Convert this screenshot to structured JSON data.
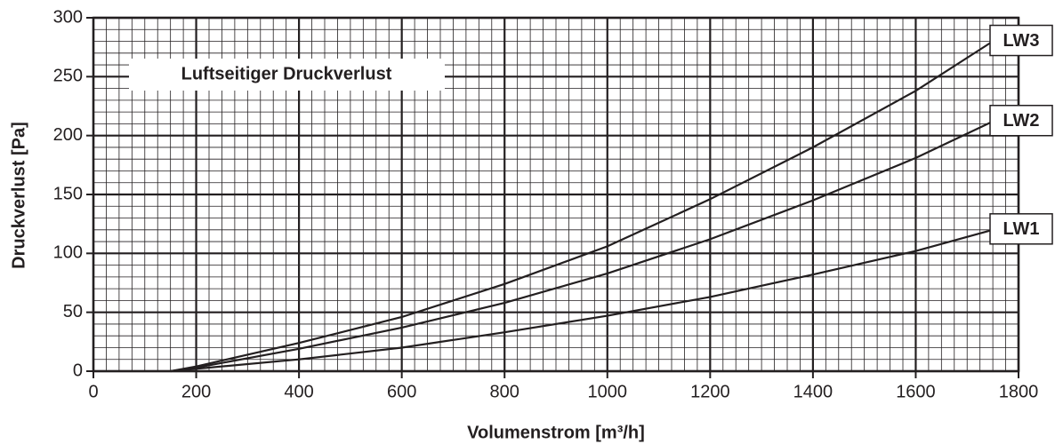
{
  "chart_data": {
    "type": "line",
    "annotation": "Luftseitiger Druckverlust",
    "x_label": "Volumenstrom [m³/h]",
    "y_label": "Druckverlust [Pa]",
    "x": [
      150,
      200,
      400,
      600,
      800,
      1000,
      1200,
      1400,
      1600,
      1750
    ],
    "series": [
      {
        "name": "LW1",
        "color": "#231f20",
        "values": [
          0,
          2,
          10,
          20,
          33,
          47,
          63,
          82,
          102,
          120
        ]
      },
      {
        "name": "LW2",
        "color": "#231f20",
        "values": [
          0,
          3,
          19,
          37,
          58,
          83,
          112,
          145,
          181,
          212
        ]
      },
      {
        "name": "LW3",
        "color": "#231f20",
        "values": [
          0,
          4,
          24,
          46,
          74,
          106,
          146,
          190,
          238,
          280
        ]
      }
    ],
    "xlim": [
      0,
      1800
    ],
    "xticks": [
      0,
      200,
      400,
      600,
      800,
      1000,
      1200,
      1400,
      1600,
      1800
    ],
    "ylim": [
      0,
      300
    ],
    "yticks": [
      0,
      50,
      100,
      150,
      200,
      250,
      300
    ],
    "grid": true,
    "minor_grid": {
      "x": 25,
      "y": 10
    }
  }
}
